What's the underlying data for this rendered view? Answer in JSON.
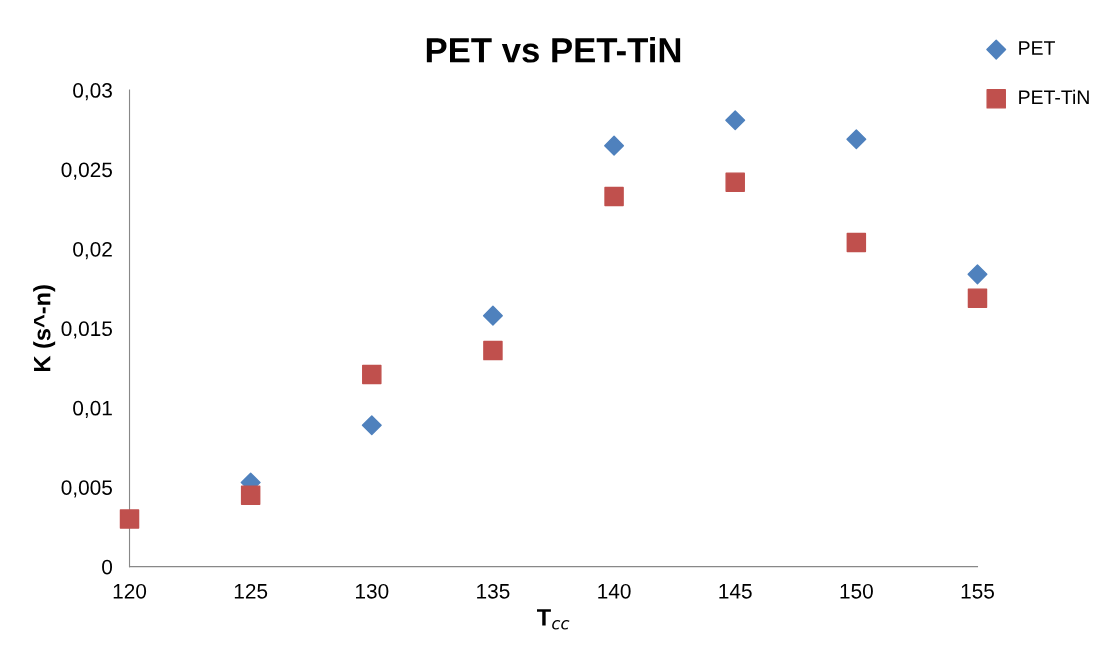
{
  "chart_data": {
    "type": "scatter",
    "title": "PET vs PET-TiN",
    "xlabel": "T$_{cc}$",
    "ylabel": "K (s^-n)",
    "x": [
      120,
      125,
      130,
      135,
      140,
      145,
      150,
      155
    ],
    "series": [
      {
        "name": "PET",
        "color": "#4f81bd",
        "marker": "diamond",
        "values": [
          null,
          0.0053,
          0.0089,
          0.0158,
          0.0265,
          0.0281,
          0.0269,
          0.0184
        ]
      },
      {
        "name": "PET-TiN",
        "color": "#c0504d",
        "marker": "square",
        "values": [
          0.003,
          0.0045,
          0.0121,
          0.0136,
          0.0233,
          0.0242,
          0.0204,
          0.0169
        ]
      }
    ],
    "xlim": [
      120,
      155
    ],
    "xticks": [
      120,
      125,
      130,
      135,
      140,
      145,
      150,
      155
    ],
    "ylim": [
      0,
      0.03
    ],
    "yticks": [
      0,
      {
        "value": 0.005,
        "label": "0,005"
      },
      {
        "value": 0.01,
        "label": "0,01"
      },
      {
        "value": 0.015,
        "label": "0,015"
      },
      {
        "value": 0.02,
        "label": "0,02"
      },
      {
        "value": 0.025,
        "label": "0,025"
      },
      {
        "value": 0.03,
        "label": "0,03"
      }
    ],
    "grid": false,
    "legend": "top right"
  }
}
